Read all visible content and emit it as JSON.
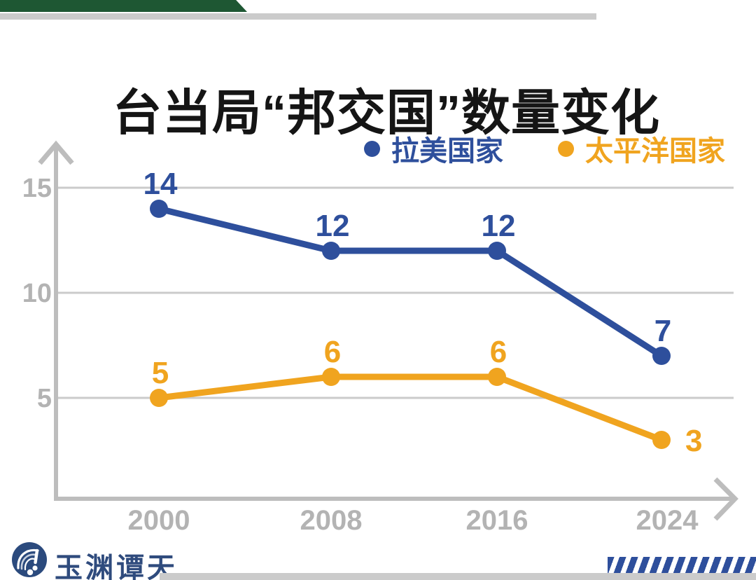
{
  "title": "台当局“邦交国”数量变化",
  "legend": [
    {
      "label": "拉美国家",
      "color": "#2E4F9C"
    },
    {
      "label": "太平洋国家",
      "color": "#F0A41F"
    }
  ],
  "chart_data": {
    "type": "line",
    "title": "台当局“邦交国”数量变化",
    "x": [
      "2000",
      "2008",
      "2016",
      "2024"
    ],
    "series": [
      {
        "name": "拉美国家",
        "color": "#2E4F9C",
        "values": [
          14,
          12,
          12,
          7
        ],
        "label_sides": [
          "top",
          "top",
          "top",
          "top"
        ]
      },
      {
        "name": "太平洋国家",
        "color": "#F0A41F",
        "values": [
          5,
          6,
          6,
          3
        ],
        "label_sides": [
          "top",
          "top",
          "top",
          "right"
        ]
      }
    ],
    "yticks": [
      5,
      10,
      15
    ],
    "ylim": [
      0,
      17
    ],
    "grid": true,
    "data_labels": true,
    "legend_position": "top-right",
    "axis_color": "#BDBDBD",
    "grid_color": "#CBCBCB",
    "tick_color": "#B3B3B3"
  },
  "footer": {
    "brand": "玉渊谭天"
  },
  "colors": {
    "banner_green": "#1E5733",
    "divider_gray": "#CBCBCB",
    "stripes_blue": "#2E4F9C",
    "logo_navy": "#2B4A7D",
    "title_black": "#151515"
  }
}
